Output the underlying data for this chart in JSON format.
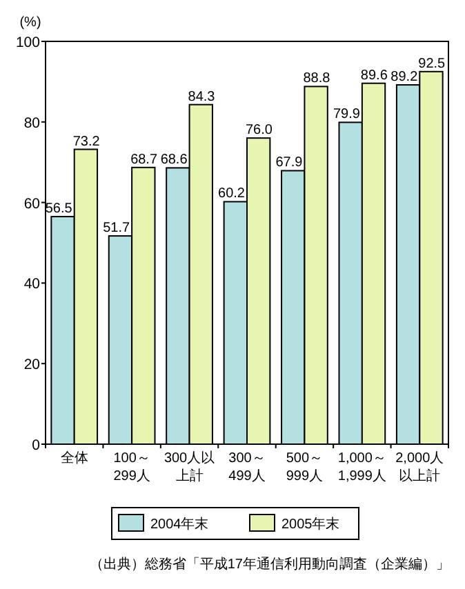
{
  "chart_data": {
    "type": "bar",
    "ylabel": "(%)",
    "categories": [
      "全体",
      "100～299人",
      "300人以上計",
      "300～499人",
      "500～999人",
      "1,000～1,999人",
      "2,000人以上計"
    ],
    "series": [
      {
        "name": "2004年末",
        "color": "#b3e0e0",
        "values": [
          56.5,
          51.7,
          68.6,
          60.2,
          67.9,
          79.9,
          89.2
        ],
        "value_labels": [
          "56.5",
          "51.7",
          "68.6",
          "60.2",
          "67.9",
          "79.9",
          "89.2"
        ]
      },
      {
        "name": "2005年末",
        "color": "#e6f5b0",
        "values": [
          73.2,
          68.7,
          84.3,
          76.0,
          88.8,
          89.6,
          92.5
        ],
        "value_labels": [
          "73.2",
          "68.7",
          "84.3",
          "76.0",
          "88.8",
          "89.6",
          "92.5"
        ]
      }
    ],
    "ylim": [
      0,
      100
    ],
    "yticks": [
      0,
      20,
      40,
      60,
      80,
      100
    ],
    "legend": "bottom",
    "grid": false,
    "annotations": [
      "（出典）総務省「平成17年通信利用動向調査（企業編）」"
    ]
  }
}
